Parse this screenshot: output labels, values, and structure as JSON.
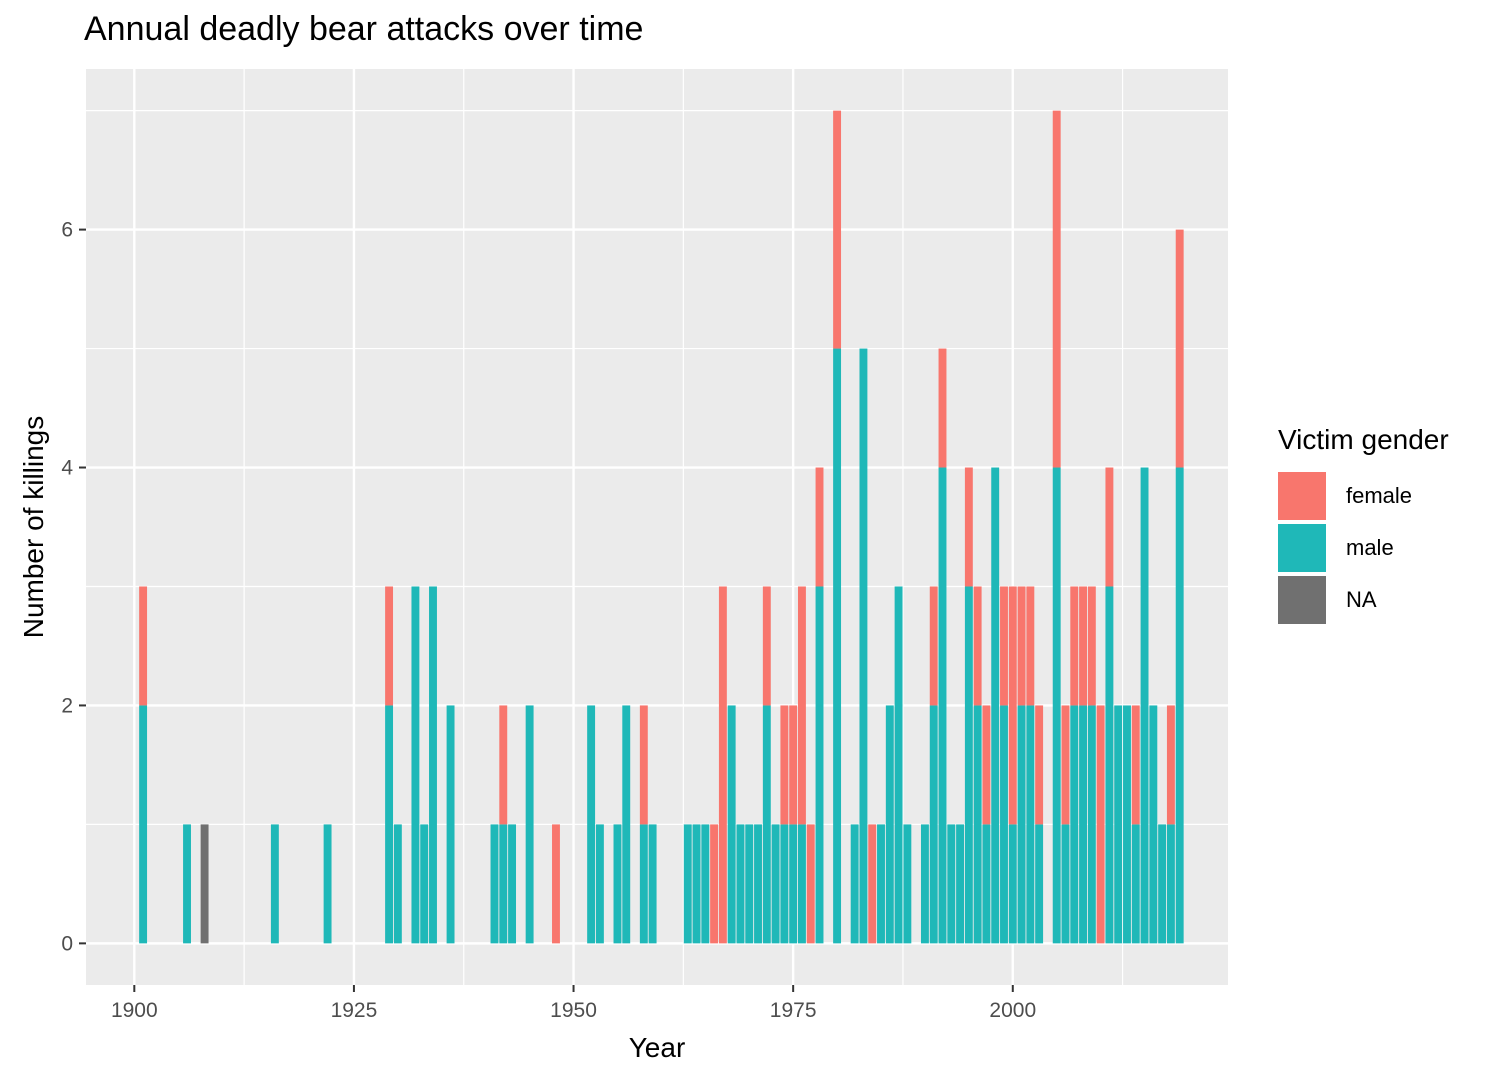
{
  "chart_data": {
    "type": "bar",
    "stacked": true,
    "title": "Annual deadly bear attacks over time",
    "xlabel": "Year",
    "ylabel": "Number of killings",
    "xlim": [
      1894.5,
      2024.5
    ],
    "ylim": [
      -0.35,
      7.35
    ],
    "x_ticks": [
      1900,
      1925,
      1950,
      1975,
      2000
    ],
    "y_ticks": [
      0,
      2,
      4,
      6
    ],
    "grid": true,
    "legend": {
      "title": "Victim gender",
      "position": "right",
      "entries": [
        {
          "label": "female",
          "color": "#F8766D"
        },
        {
          "label": "male",
          "color": "#1FB8B8"
        },
        {
          "label": "NA",
          "color": "#707070"
        }
      ]
    },
    "series": [
      {
        "name": "male",
        "color": "#1FB8B8",
        "x": [
          1901,
          1906,
          1916,
          1922,
          1929,
          1930,
          1932,
          1933,
          1934,
          1936,
          1941,
          1942,
          1943,
          1945,
          1952,
          1953,
          1955,
          1956,
          1958,
          1959,
          1963,
          1964,
          1965,
          1968,
          1969,
          1970,
          1971,
          1972,
          1973,
          1974,
          1975,
          1976,
          1978,
          1980,
          1982,
          1983,
          1985,
          1986,
          1987,
          1988,
          1990,
          1991,
          1992,
          1993,
          1994,
          1995,
          1996,
          1997,
          1998,
          1999,
          2000,
          2001,
          2002,
          2003,
          2005,
          2006,
          2007,
          2008,
          2009,
          2011,
          2012,
          2013,
          2014,
          2015,
          2016,
          2017,
          2018,
          2019
        ],
        "values": [
          2,
          1,
          1,
          1,
          2,
          1,
          3,
          1,
          3,
          2,
          1,
          1,
          1,
          2,
          2,
          1,
          1,
          2,
          1,
          1,
          1,
          1,
          1,
          2,
          1,
          1,
          1,
          2,
          1,
          1,
          1,
          1,
          3,
          5,
          1,
          5,
          1,
          2,
          3,
          1,
          1,
          2,
          4,
          1,
          1,
          3,
          2,
          1,
          4,
          2,
          1,
          2,
          2,
          1,
          4,
          1,
          2,
          2,
          2,
          3,
          2,
          2,
          1,
          4,
          2,
          1,
          1,
          4
        ]
      },
      {
        "name": "female",
        "color": "#F8766D",
        "x": [
          1901,
          1929,
          1942,
          1948,
          1958,
          1966,
          1967,
          1972,
          1974,
          1975,
          1976,
          1977,
          1978,
          1980,
          1984,
          1991,
          1992,
          1995,
          1996,
          1997,
          1999,
          2000,
          2001,
          2002,
          2003,
          2005,
          2006,
          2007,
          2008,
          2009,
          2010,
          2011,
          2014,
          2018,
          2019
        ],
        "values": [
          1,
          1,
          1,
          1,
          1,
          1,
          3,
          1,
          1,
          1,
          2,
          1,
          1,
          2,
          1,
          1,
          1,
          1,
          1,
          1,
          1,
          2,
          1,
          1,
          1,
          3,
          1,
          1,
          1,
          1,
          2,
          1,
          1,
          1,
          2
        ]
      },
      {
        "name": "NA",
        "color": "#707070",
        "x": [
          1908
        ],
        "values": [
          1
        ]
      }
    ]
  }
}
